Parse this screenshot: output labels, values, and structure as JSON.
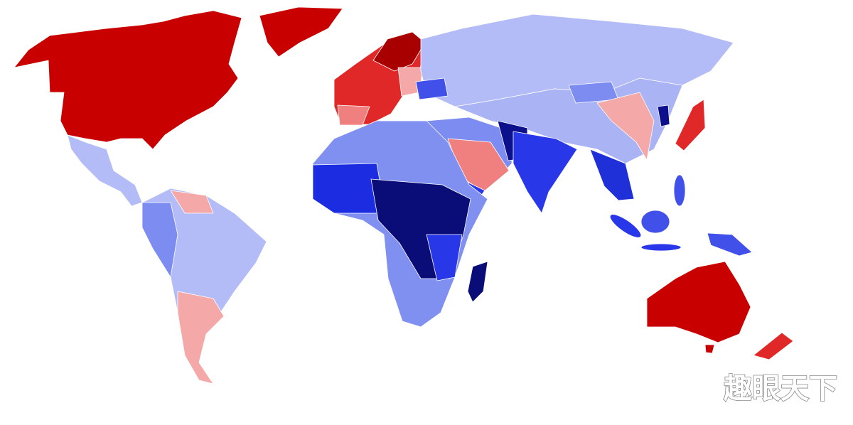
{
  "watermark": "趣眼天下"
}
